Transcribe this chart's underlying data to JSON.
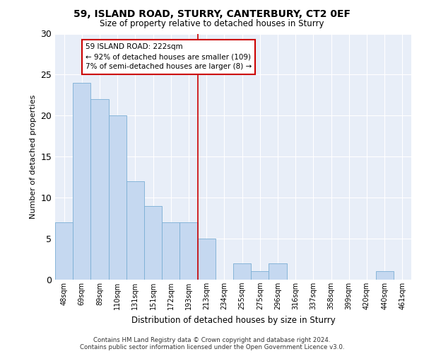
{
  "title": "59, ISLAND ROAD, STURRY, CANTERBURY, CT2 0EF",
  "subtitle": "Size of property relative to detached houses in Sturry",
  "xlabel": "Distribution of detached houses by size in Sturry",
  "ylabel": "Number of detached properties",
  "categories": [
    "48sqm",
    "69sqm",
    "89sqm",
    "110sqm",
    "131sqm",
    "151sqm",
    "172sqm",
    "193sqm",
    "213sqm",
    "234sqm",
    "255sqm",
    "275sqm",
    "296sqm",
    "316sqm",
    "337sqm",
    "358sqm",
    "399sqm",
    "420sqm",
    "440sqm",
    "461sqm"
  ],
  "values": [
    7,
    24,
    22,
    20,
    12,
    9,
    7,
    7,
    5,
    0,
    2,
    1,
    2,
    0,
    0,
    0,
    0,
    0,
    1,
    0
  ],
  "bar_color": "#c5d8f0",
  "bar_edge_color": "#7aaed4",
  "subject_line_index": 8,
  "subject_line_color": "#cc0000",
  "annotation_text": "59 ISLAND ROAD: 222sqm\n← 92% of detached houses are smaller (109)\n7% of semi-detached houses are larger (8) →",
  "annotation_box_color": "#ffffff",
  "annotation_box_edge_color": "#cc0000",
  "ylim": [
    0,
    30
  ],
  "yticks": [
    0,
    5,
    10,
    15,
    20,
    25,
    30
  ],
  "fig_bg_color": "#ffffff",
  "ax_bg_color": "#e8eef8",
  "grid_color": "#ffffff",
  "footer_line1": "Contains HM Land Registry data © Crown copyright and database right 2024.",
  "footer_line2": "Contains public sector information licensed under the Open Government Licence v3.0."
}
